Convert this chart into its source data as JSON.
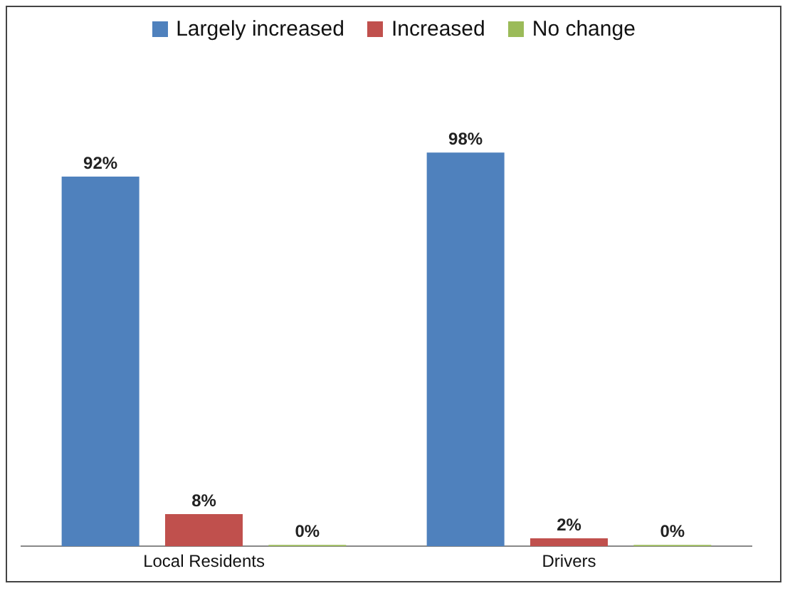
{
  "chart_data": {
    "type": "bar",
    "categories": [
      "Local Residents",
      "Drivers"
    ],
    "series": [
      {
        "name": "Largely increased",
        "color": "#4f81bd",
        "values": [
          92,
          98
        ],
        "value_labels": [
          "92%",
          "98%"
        ]
      },
      {
        "name": "Increased",
        "color": "#c0504d",
        "values": [
          8,
          2
        ],
        "value_labels": [
          "8%",
          "2%"
        ]
      },
      {
        "name": "No change",
        "color": "#9bbb59",
        "values": [
          0,
          0
        ],
        "value_labels": [
          "0%",
          "0%"
        ]
      }
    ],
    "legend": "top",
    "grid": false
  }
}
